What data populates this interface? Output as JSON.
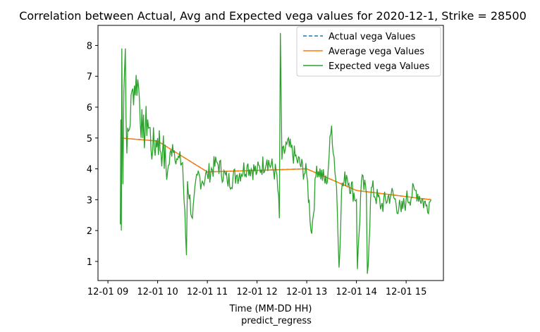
{
  "chart_data": {
    "type": "line",
    "title": "Correlation between Actual, Avg and Expected vega values for 2020-12-1, Strike = 28500",
    "xlabel": "Time (MM-DD HH)",
    "xlabel_sub": "predict_regress",
    "ylabel": "",
    "x_ticks": [
      "12-01 09",
      "12-01 10",
      "12-01 11",
      "12-01 12",
      "12-01 13",
      "12-01 14",
      "12-01 15"
    ],
    "x_tick_hours": [
      9,
      10,
      11,
      12,
      13,
      14,
      15
    ],
    "xlim_hours": [
      8.8,
      15.75
    ],
    "y_ticks": [
      1,
      2,
      3,
      4,
      5,
      6,
      7,
      8
    ],
    "ylim": [
      0.38,
      8.65
    ],
    "grid": false,
    "legend_position": "top-right",
    "series": [
      {
        "name": "Actual vega Values",
        "color": "#1f77b4",
        "style": "dashed",
        "values": [
          [
            9.25,
            5.0
          ],
          [
            10.0,
            4.9
          ],
          [
            11.0,
            3.9
          ],
          [
            12.0,
            3.95
          ],
          [
            13.0,
            4.0
          ],
          [
            14.0,
            3.3
          ],
          [
            15.5,
            3.0
          ]
        ]
      },
      {
        "name": "Average vega Values",
        "color": "#ff7f0e",
        "style": "solid",
        "values": [
          [
            9.25,
            5.0
          ],
          [
            10.0,
            4.9
          ],
          [
            11.0,
            3.9
          ],
          [
            12.0,
            3.95
          ],
          [
            13.0,
            4.0
          ],
          [
            14.0,
            3.3
          ],
          [
            15.5,
            3.0
          ]
        ]
      },
      {
        "name": "Expected vega Values",
        "color": "#2ca02c",
        "style": "solid",
        "values": [
          [
            9.25,
            2.2
          ],
          [
            9.26,
            5.6
          ],
          [
            9.27,
            2.0
          ],
          [
            9.28,
            7.9
          ],
          [
            9.3,
            3.5
          ],
          [
            9.32,
            6.5
          ],
          [
            9.35,
            7.9
          ],
          [
            9.38,
            4.5
          ],
          [
            9.5,
            6.6
          ],
          [
            9.6,
            6.9
          ],
          [
            9.7,
            5.0
          ],
          [
            9.8,
            5.6
          ],
          [
            9.9,
            4.6
          ],
          [
            10.0,
            5.0
          ],
          [
            10.1,
            4.6
          ],
          [
            10.2,
            3.9
          ],
          [
            10.3,
            4.8
          ],
          [
            10.4,
            4.3
          ],
          [
            10.5,
            4.2
          ],
          [
            10.58,
            1.2
          ],
          [
            10.6,
            3.6
          ],
          [
            10.7,
            2.4
          ],
          [
            10.8,
            3.8
          ],
          [
            10.9,
            3.6
          ],
          [
            11.0,
            3.8
          ],
          [
            11.2,
            4.2
          ],
          [
            11.4,
            3.6
          ],
          [
            11.6,
            3.8
          ],
          [
            11.8,
            4.1
          ],
          [
            12.0,
            3.9
          ],
          [
            12.2,
            4.3
          ],
          [
            12.4,
            3.8
          ],
          [
            12.45,
            2.4
          ],
          [
            12.47,
            8.4
          ],
          [
            12.5,
            4.3
          ],
          [
            12.6,
            4.8
          ],
          [
            12.8,
            4.3
          ],
          [
            13.0,
            3.8
          ],
          [
            13.1,
            1.9
          ],
          [
            13.2,
            4.1
          ],
          [
            13.4,
            3.5
          ],
          [
            13.5,
            5.4
          ],
          [
            13.6,
            3.4
          ],
          [
            13.65,
            0.8
          ],
          [
            13.7,
            3.3
          ],
          [
            13.8,
            3.8
          ],
          [
            14.0,
            3.0
          ],
          [
            14.02,
            0.75
          ],
          [
            14.1,
            3.6
          ],
          [
            14.2,
            3.2
          ],
          [
            14.22,
            0.6
          ],
          [
            14.3,
            3.4
          ],
          [
            14.5,
            2.8
          ],
          [
            14.7,
            3.2
          ],
          [
            14.9,
            2.6
          ],
          [
            15.0,
            3.0
          ],
          [
            15.2,
            3.3
          ],
          [
            15.4,
            2.8
          ],
          [
            15.5,
            3.0
          ]
        ]
      }
    ]
  }
}
